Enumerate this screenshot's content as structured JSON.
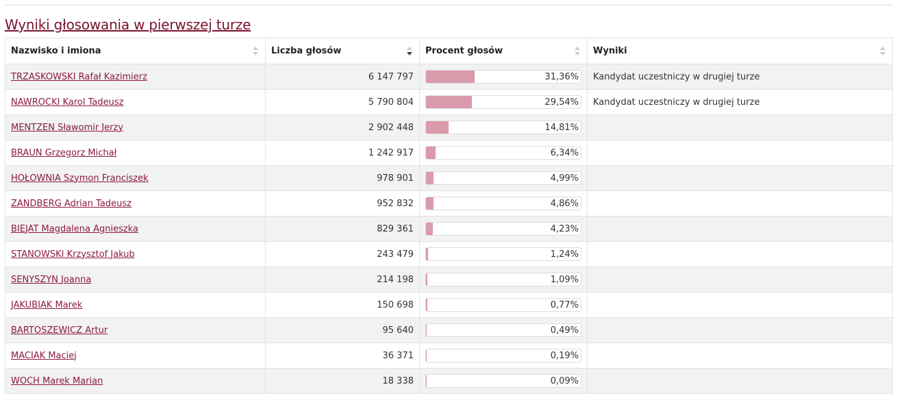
{
  "section_title": "Wyniki głosowania w pierwszej turze",
  "columns": {
    "name": "Nazwisko i imiona",
    "votes": "Liczba głosów",
    "percent": "Procent głosów",
    "result": "Wyniki"
  },
  "sort": {
    "column": "votes",
    "direction": "desc"
  },
  "colors": {
    "bar_fill": "#d99aab",
    "link": "#8b1a3b"
  },
  "candidates": [
    {
      "name": "TRZASKOWSKI Rafał Kazimierz",
      "votes": "6 147 797",
      "percent_label": "31,36%",
      "percent": 31.36,
      "result": "Kandydat uczestniczy w drugiej turze"
    },
    {
      "name": "NAWROCKI Karol Tadeusz",
      "votes": "5 790 804",
      "percent_label": "29,54%",
      "percent": 29.54,
      "result": "Kandydat uczestniczy w drugiej turze"
    },
    {
      "name": "MENTZEN Sławomir Jerzy",
      "votes": "2 902 448",
      "percent_label": "14,81%",
      "percent": 14.81,
      "result": ""
    },
    {
      "name": "BRAUN Grzegorz Michał",
      "votes": "1 242 917",
      "percent_label": "6,34%",
      "percent": 6.34,
      "result": ""
    },
    {
      "name": "HOŁOWNIA Szymon Franciszek",
      "votes": "978 901",
      "percent_label": "4,99%",
      "percent": 4.99,
      "result": ""
    },
    {
      "name": "ZANDBERG Adrian Tadeusz",
      "votes": "952 832",
      "percent_label": "4,86%",
      "percent": 4.86,
      "result": ""
    },
    {
      "name": "BIEJAT Magdalena Agnieszka",
      "votes": "829 361",
      "percent_label": "4,23%",
      "percent": 4.23,
      "result": ""
    },
    {
      "name": "STANOWSKI Krzysztof Jakub",
      "votes": "243 479",
      "percent_label": "1,24%",
      "percent": 1.24,
      "result": ""
    },
    {
      "name": "SENYSZYN Joanna",
      "votes": "214 198",
      "percent_label": "1,09%",
      "percent": 1.09,
      "result": ""
    },
    {
      "name": "JAKUBIAK Marek",
      "votes": "150 698",
      "percent_label": "0,77%",
      "percent": 0.77,
      "result": ""
    },
    {
      "name": "BARTOSZEWICZ Artur",
      "votes": "95 640",
      "percent_label": "0,49%",
      "percent": 0.49,
      "result": ""
    },
    {
      "name": "MACIAK Maciej",
      "votes": "36 371",
      "percent_label": "0,19%",
      "percent": 0.19,
      "result": ""
    },
    {
      "name": "WOCH Marek Marian",
      "votes": "18 338",
      "percent_label": "0,09%",
      "percent": 0.09,
      "result": ""
    }
  ]
}
